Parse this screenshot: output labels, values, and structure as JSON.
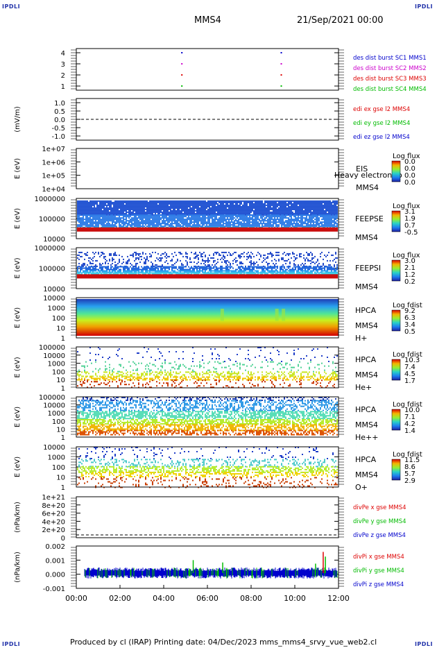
{
  "corners": {
    "tl": "IPDLI",
    "tr": "IPDLI",
    "bl": "IPDLI",
    "br": "IPDLI"
  },
  "header": {
    "spacecraft": "MMS4",
    "date": "21/Sep/2021 00:00"
  },
  "footer": {
    "text": "Produced by cl (IRAP)   Printing date: 04/Dec/2023   mms_mms4_srvy_vue_web2.cl"
  },
  "chart_data": [
    {
      "type": "scatter",
      "panel": "burst",
      "ylim": [
        0.6,
        4.4
      ],
      "yticks": [
        "4",
        "3",
        "2",
        "1"
      ],
      "legend": [
        "des dist burst SC1 MMS1",
        "des dist burst SC2 MMS2",
        "des dist burst SC3 MMS3",
        "des dist burst SC4 MMS4"
      ],
      "legend_colors": [
        "#0000cc",
        "#cc00cc",
        "#dd0000",
        "#00bb00"
      ],
      "x_hours": [
        4.8,
        9.35
      ]
    },
    {
      "type": "line",
      "panel": "edi",
      "ylabel": "(mV/m)",
      "ylim": [
        -1.1,
        1.1
      ],
      "yticks": [
        "1.0",
        "0.5",
        "0.0",
        "-0.5",
        "-1.0"
      ],
      "legend": [
        "edi ex gse l2 MMS4",
        "edi ey gse l2 MMS4",
        "edi ez gse l2 MMS4"
      ],
      "legend_colors": [
        "#dd0000",
        "#00bb00",
        "#0000cc"
      ]
    },
    {
      "type": "heatmap",
      "panel": "eis",
      "ylabel": "E (eV)",
      "yticks": [
        "1e+07",
        "1e+06",
        "1e+05",
        "1e+04"
      ],
      "side": [
        "EIS",
        "Heavy electron to",
        "MMS4"
      ],
      "cbar_title": "Log flux",
      "cbar_ticks": [
        "0.0",
        "0.0",
        "0.0",
        "0.0"
      ]
    },
    {
      "type": "heatmap",
      "panel": "feepse",
      "ylabel": "E (eV)",
      "yticks": [
        "1000000",
        "100000",
        "10000"
      ],
      "side": [
        "FEEPSE",
        "MMS4"
      ],
      "cbar_title": "Log flux",
      "cbar_ticks": [
        "3.1",
        "1.9",
        "0.7",
        "-0.5"
      ]
    },
    {
      "type": "heatmap",
      "panel": "feepsi",
      "ylabel": "E (eV)",
      "yticks": [
        "1000000",
        "100000",
        "10000"
      ],
      "side": [
        "FEEPSI",
        "MMS4"
      ],
      "cbar_title": "Log flux",
      "cbar_ticks": [
        "3.0",
        "2.1",
        "1.2",
        "0.2"
      ]
    },
    {
      "type": "heatmap",
      "panel": "hpca_h",
      "ylabel": "E (eV)",
      "yticks": [
        "10000",
        "1000",
        "100",
        "10",
        "1"
      ],
      "side": [
        "HPCA",
        "MMS4",
        "H+"
      ],
      "cbar_title": "Log fdist",
      "cbar_ticks": [
        "9.2",
        "6.3",
        "3.4",
        "0.5"
      ]
    },
    {
      "type": "heatmap",
      "panel": "hpca_he",
      "ylabel": "E (eV)",
      "yticks": [
        "100000",
        "10000",
        "1000",
        "100",
        "10",
        "1"
      ],
      "side": [
        "HPCA",
        "MMS4",
        "He+"
      ],
      "cbar_title": "Log fdist",
      "cbar_ticks": [
        "10.3",
        "7.4",
        "4.5",
        "1.7"
      ]
    },
    {
      "type": "heatmap",
      "panel": "hpca_hepp",
      "ylabel": "E (eV)",
      "yticks": [
        "100000",
        "10000",
        "1000",
        "100",
        "10",
        "1"
      ],
      "side": [
        "HPCA",
        "MMS4",
        "He++"
      ],
      "cbar_title": "Log fdist",
      "cbar_ticks": [
        "10.0",
        "7.1",
        "4.2",
        "1.4"
      ]
    },
    {
      "type": "heatmap",
      "panel": "hpca_o",
      "ylabel": "E (eV)",
      "yticks": [
        "10000",
        "1000",
        "100",
        "10",
        "1"
      ],
      "side": [
        "HPCA",
        "MMS4",
        "O+"
      ],
      "cbar_title": "Log fdist",
      "cbar_ticks": [
        "11.5",
        "8.6",
        "5.7",
        "2.9"
      ]
    },
    {
      "type": "line",
      "panel": "divpe",
      "ylabel": "(nPa/km)",
      "ylim": [
        -5e+19,
        1.1e+21
      ],
      "yticks": [
        "1e+21",
        "8e+20",
        "6e+20",
        "4e+20",
        "2e+20",
        "0"
      ],
      "legend": [
        "divPe x gse MMS4",
        "divPe y gse MMS4",
        "divPe z gse MMS4"
      ],
      "legend_colors": [
        "#dd0000",
        "#00bb00",
        "#0000cc"
      ]
    },
    {
      "type": "line",
      "panel": "divpi",
      "ylabel": "(nPa/km)",
      "ylim": [
        -0.0013,
        0.0023
      ],
      "yticks": [
        "0.002",
        "0.001",
        "0.000",
        "-0.001"
      ],
      "legend": [
        "divPi x gse MMS4",
        "divPi y gse MMS4",
        "divPi z gse MMS4"
      ],
      "legend_colors": [
        "#dd0000",
        "#00bb00",
        "#0000cc"
      ],
      "spikes": [
        {
          "x": 5.35,
          "y": 0.0011,
          "c": "#00bb00"
        },
        {
          "x": 6.7,
          "y": 0.0009,
          "c": "#00bb00"
        },
        {
          "x": 11.3,
          "y": 0.0018,
          "c": "#dd0000"
        },
        {
          "x": 11.4,
          "y": 0.0014,
          "c": "#00bb00"
        },
        {
          "x": 10.95,
          "y": 0.0008,
          "c": "#00bb00"
        }
      ]
    },
    {
      "type": "axis",
      "panel": "time",
      "xticks": [
        "00:00",
        "02:00",
        "04:00",
        "06:00",
        "08:00",
        "10:00",
        "12:00"
      ],
      "xlim": [
        0,
        12
      ]
    }
  ]
}
